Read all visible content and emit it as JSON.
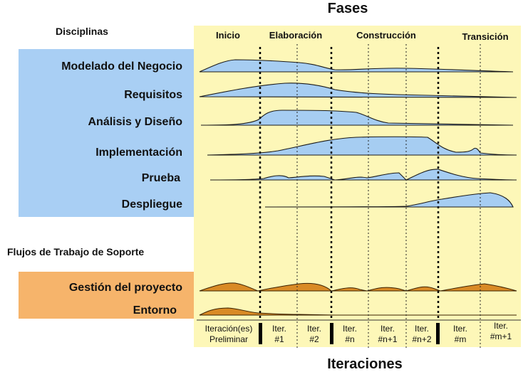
{
  "title": "Fases",
  "footer": "Iteraciones",
  "disciplines_header": "Disciplinas",
  "support_header": "Flujos de Trabajo de Soporte",
  "phases": [
    "Inicio",
    "Elaboración",
    "Construcción",
    "Transición"
  ],
  "disciplines": [
    "Modelado del Negocio",
    "Requisitos",
    "Análisis y Diseño",
    "Implementación",
    "Prueba",
    "Despliegue"
  ],
  "support": [
    "Gestión del proyecto",
    "Entorno"
  ],
  "iterations": [
    [
      "Iteración(es)",
      "Preliminar"
    ],
    [
      "Iter.",
      "#1"
    ],
    [
      "Iter.",
      "#2"
    ],
    [
      "Iter.",
      "#n"
    ],
    [
      "Iter.",
      "#n+1"
    ],
    [
      "Iter.",
      "#n+2"
    ],
    [
      "Iter.",
      "#m"
    ],
    [
      "Iter.",
      "#m+1"
    ]
  ],
  "colors": {
    "chart_bg": "#fdf7b8",
    "discipline_band": "#a9cff4",
    "support_band": "#f6b46b",
    "hump_blue": "#a6cdf2",
    "hump_orange": "#d98a25"
  }
}
